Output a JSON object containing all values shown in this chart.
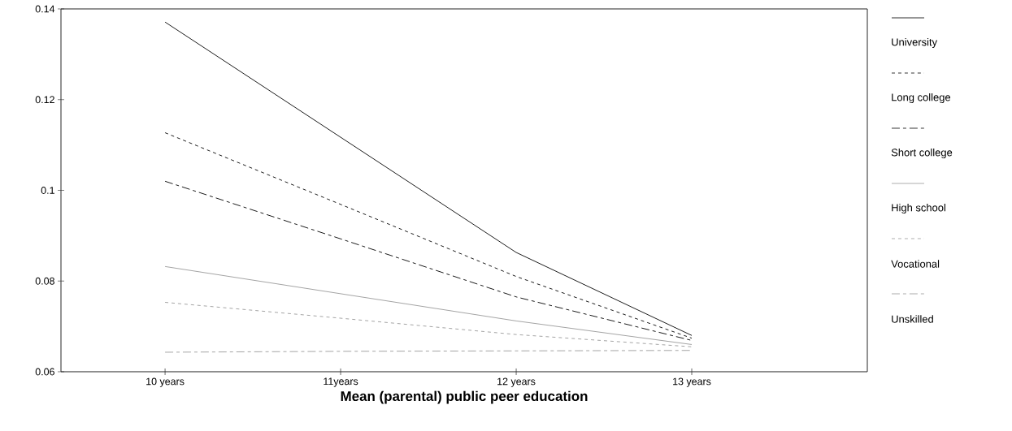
{
  "chart_data": {
    "type": "line",
    "xlabel": "Mean (parental) public peer education",
    "categories": [
      "10 years",
      "11years",
      "12 years",
      "13 years"
    ],
    "series": [
      {
        "name": "University",
        "color": "#000000",
        "line_style": "solid",
        "values": [
          0.1371,
          0.1117,
          0.0863,
          0.068
        ]
      },
      {
        "name": "Long college",
        "color": "#000000",
        "line_style": "dashed",
        "values": [
          0.1127,
          0.0969,
          0.081,
          0.0674
        ]
      },
      {
        "name": "Short college",
        "color": "#000000",
        "line_style": "dashed",
        "values": [
          0.102,
          0.0893,
          0.0765,
          0.0669
        ]
      },
      {
        "name": "High school",
        "color": "#999999",
        "line_style": "solid",
        "values": [
          0.0832,
          0.0772,
          0.0712,
          0.066
        ]
      },
      {
        "name": "Vocational",
        "color": "#999999",
        "line_style": "dashed",
        "values": [
          0.0753,
          0.0718,
          0.0682,
          0.0655
        ]
      },
      {
        "name": "Unskilled",
        "color": "#999999",
        "line_style": "dashed",
        "values": [
          0.0643,
          0.0645,
          0.0646,
          0.0647
        ]
      }
    ],
    "ylim": [
      0.06,
      0.14
    ],
    "yticks": [
      0.06,
      0.08,
      {
        "value": 0.1,
        "label": "0.1"
      },
      0.12,
      0.14
    ],
    "grid": false,
    "legend": "right",
    "marker": "none"
  }
}
